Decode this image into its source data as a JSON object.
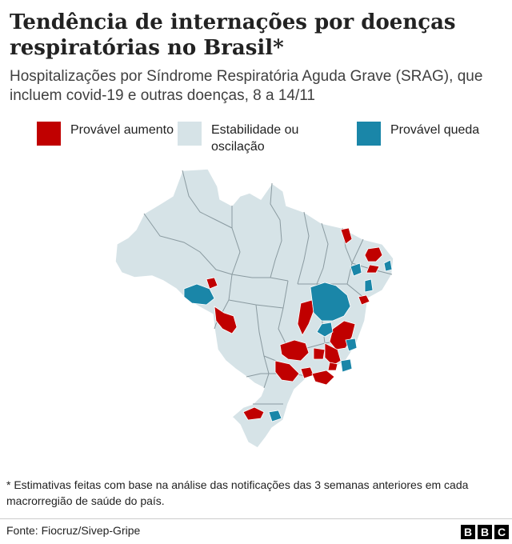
{
  "header": {
    "title": "Tendência de internações por doenças respiratórias no Brasil*",
    "subtitle": "Hospitalizações por Síndrome Respiratória Aguda Grave (SRAG), que incluem covid-19 e outras doenças, 8 a 14/11"
  },
  "legend": {
    "items": [
      {
        "label": "Provável aumento",
        "color": "#c00000"
      },
      {
        "label": "Estabilidade ou oscilação",
        "color": "#d6e3e7"
      },
      {
        "label": "Provável queda",
        "color": "#1a86a8"
      }
    ]
  },
  "map": {
    "colors": {
      "base": "#d6e3e7",
      "border": "#ffffff",
      "internal_border": "#8a9aa0",
      "increase": "#c00000",
      "decrease": "#1a86a8"
    }
  },
  "footnote": "* Estimativas feitas com base na análise das notificações das 3 semanas anteriores em cada macrorregião de saúde do país.",
  "footer": {
    "source": "Fonte:  Fiocruz/Sivep-Gripe",
    "logo": [
      "B",
      "B",
      "C"
    ]
  }
}
